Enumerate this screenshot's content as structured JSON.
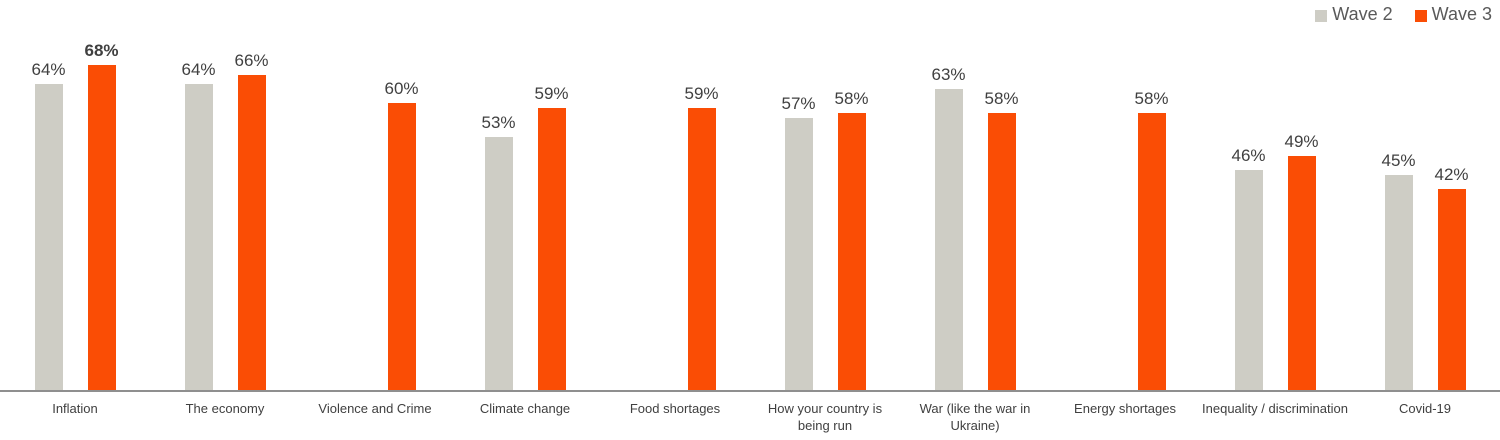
{
  "legend": {
    "items": [
      {
        "label": "Wave 2",
        "color": "#cecdc5"
      },
      {
        "label": "Wave 3",
        "color": "#fa4d05"
      }
    ]
  },
  "chart_data": {
    "type": "bar",
    "title": "",
    "xlabel": "",
    "ylabel": "",
    "value_suffix": "%",
    "ylim": [
      0,
      81
    ],
    "grid": false,
    "legend_position": "top-right",
    "categories": [
      "Inflation",
      "The economy",
      "Violence and Crime",
      "Climate change",
      "Food shortages",
      "How your country is being run",
      "War (like the war in Ukraine)",
      "Energy shortages",
      "Inequality / discrimination",
      "Covid-19"
    ],
    "category_display": [
      "Inflation",
      "The economy",
      "Violence and Crime",
      "Climate change",
      "Food shortages",
      "How your country is\nbeing run",
      "War (like the war in\nUkraine)",
      "Energy shortages",
      "Inequality / discrimination",
      "Covid-19"
    ],
    "series": [
      {
        "name": "Wave 2",
        "color": "#cecdc5",
        "values": [
          64,
          64,
          null,
          53,
          null,
          57,
          63,
          null,
          46,
          45
        ]
      },
      {
        "name": "Wave 3",
        "color": "#fa4d05",
        "values": [
          68,
          66,
          60,
          59,
          59,
          58,
          58,
          58,
          49,
          42
        ]
      }
    ],
    "emphasis": [
      {
        "series": "Wave 3",
        "category": "Inflation"
      }
    ],
    "colors": {
      "axis_line": "#8f8f8f",
      "value_label_text": "#404040",
      "category_label_text": "#404040",
      "legend_text": "#595959"
    }
  }
}
